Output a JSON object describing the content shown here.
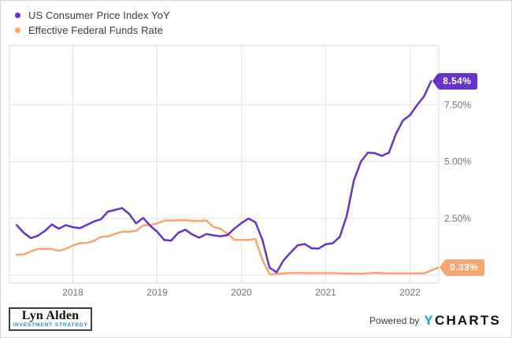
{
  "chart_data": {
    "type": "line",
    "x_ticks": [
      {
        "t": 2018,
        "label": "2018"
      },
      {
        "t": 2019,
        "label": "2019"
      },
      {
        "t": 2020,
        "label": "2020"
      },
      {
        "t": 2021,
        "label": "2021"
      },
      {
        "t": 2022,
        "label": "2022"
      }
    ],
    "y_ticks": [
      {
        "v": 0,
        "label": ""
      },
      {
        "v": 2.5,
        "label": "2.50%"
      },
      {
        "v": 5,
        "label": "5.00%"
      },
      {
        "v": 7.5,
        "label": "7.50%"
      }
    ],
    "xlim": [
      2017.31,
      2022.34
    ],
    "ylim": [
      -0.35,
      10.1
    ],
    "grid": true,
    "legend_position": "top-left",
    "series": [
      {
        "name": "US Consumer Price Index YoY",
        "color": "#6633CC",
        "start": "2017-04",
        "unit": "%",
        "last_label": "8.54%",
        "values": [
          2.2,
          1.87,
          1.63,
          1.73,
          1.94,
          2.23,
          2.04,
          2.2,
          2.11,
          2.07,
          2.21,
          2.36,
          2.46,
          2.8,
          2.87,
          2.95,
          2.7,
          2.28,
          2.52,
          2.18,
          1.91,
          1.55,
          1.52,
          1.86,
          2.0,
          1.79,
          1.65,
          1.81,
          1.75,
          1.71,
          1.76,
          2.05,
          2.29,
          2.49,
          2.33,
          1.54,
          0.33,
          0.12,
          0.65,
          0.99,
          1.31,
          1.37,
          1.18,
          1.17,
          1.36,
          1.4,
          1.68,
          2.62,
          4.16,
          4.99,
          5.39,
          5.37,
          5.25,
          5.39,
          6.22,
          6.81,
          7.04,
          7.48,
          7.87,
          8.54
        ]
      },
      {
        "name": "Effective Federal Funds Rate",
        "color": "#F9A570",
        "start": "2017-04",
        "unit": "%",
        "last_label": "0.33%",
        "values": [
          0.9,
          0.91,
          1.04,
          1.15,
          1.16,
          1.15,
          1.07,
          1.16,
          1.3,
          1.41,
          1.42,
          1.51,
          1.69,
          1.7,
          1.82,
          1.91,
          1.91,
          1.95,
          2.19,
          2.2,
          2.27,
          2.4,
          2.4,
          2.41,
          2.42,
          2.39,
          2.38,
          2.4,
          2.13,
          2.04,
          1.83,
          1.55,
          1.55,
          1.55,
          1.58,
          0.65,
          0.05,
          0.05,
          0.08,
          0.09,
          0.1,
          0.09,
          0.09,
          0.09,
          0.09,
          0.09,
          0.08,
          0.07,
          0.07,
          0.06,
          0.08,
          0.1,
          0.09,
          0.08,
          0.08,
          0.08,
          0.08,
          0.08,
          0.08,
          0.2,
          0.33
        ]
      }
    ]
  },
  "branding": {
    "logo_line1": "Lyn Alden",
    "logo_line2": "INVESTMENT STRATEGY",
    "powered_by": "Powered by",
    "ycharts_y": "Y",
    "ycharts_rest": "CHARTS"
  },
  "colors": {
    "purple": "#6633CC",
    "orange": "#F9A570",
    "grid": "#E3E3E3",
    "axis_border": "#D8D8D8",
    "tick_text": "#757575",
    "legend_text": "#3C3C3C",
    "ycharts_blue": "#0FA1F4",
    "logo_blue": "#1F8FD5"
  }
}
